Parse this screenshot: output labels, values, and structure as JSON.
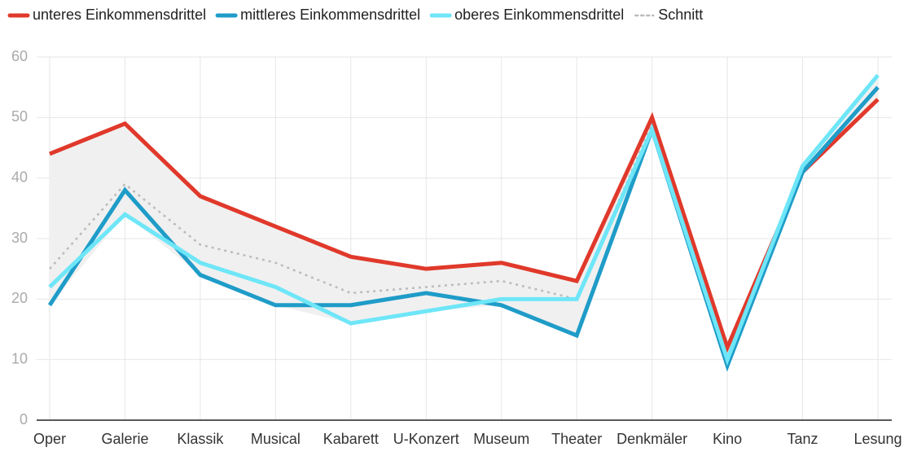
{
  "chart_data": {
    "type": "line",
    "categories": [
      "Oper",
      "Galerie",
      "Klassik",
      "Musical",
      "Kabarett",
      "U-Konzert",
      "Museum",
      "Theater",
      "Denkmäler",
      "Kino",
      "Tanz",
      "Lesung"
    ],
    "series": [
      {
        "name": "unteres Einkommensdrittel",
        "color": "#e0392b",
        "style": "solid",
        "values": [
          44,
          49,
          37,
          32,
          27,
          25,
          26,
          23,
          50,
          12,
          41,
          53
        ]
      },
      {
        "name": "mittleres Einkommensdrittel",
        "color": "#1f9cc8",
        "style": "solid",
        "values": [
          19,
          38,
          24,
          19,
          19,
          21,
          19,
          14,
          48,
          9,
          41,
          55
        ]
      },
      {
        "name": "oberes Einkommensdrittel",
        "color": "#6ee6f8",
        "style": "solid",
        "values": [
          22,
          34,
          26,
          22,
          16,
          18,
          20,
          20,
          48,
          10,
          42,
          57
        ]
      },
      {
        "name": "Schnitt",
        "color": "#bbbbbb",
        "style": "dotted",
        "values": [
          25,
          39,
          29,
          26,
          21,
          22,
          23,
          20,
          49,
          10,
          41,
          55
        ]
      }
    ],
    "ylim": [
      0,
      60
    ],
    "yticks": [
      0,
      10,
      20,
      30,
      40,
      50,
      60
    ],
    "grid": true,
    "legend": "top"
  }
}
